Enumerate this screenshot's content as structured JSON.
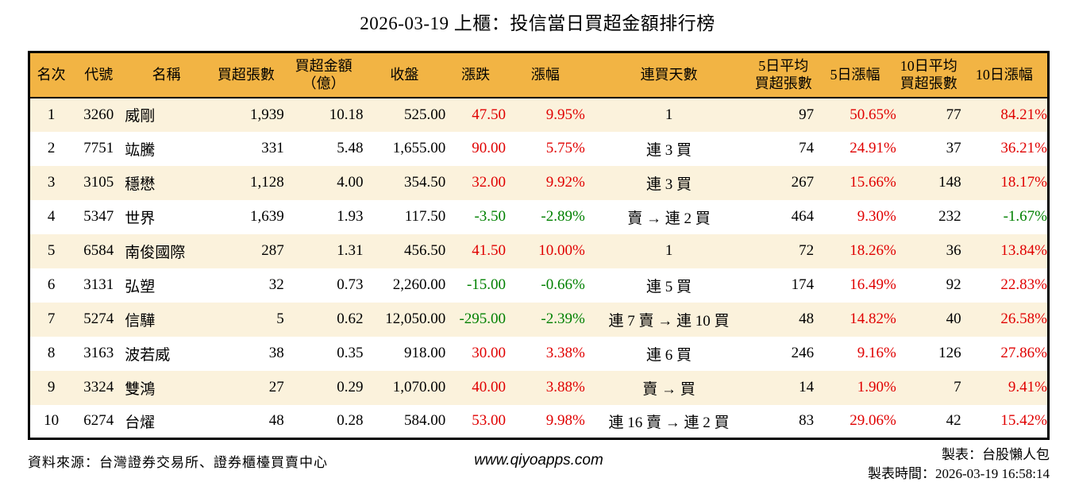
{
  "title": "2026-03-19 上櫃：投信當日買超金額排行榜",
  "colors": {
    "header_bg": "#f2b444",
    "row_alt_bg": "#fbf2dc",
    "positive_red": "#e00000",
    "negative_green": "#008000"
  },
  "chart_data": {
    "type": "table",
    "title": "2026-03-19 上櫃：投信當日買超金額排行榜",
    "headers": [
      "名次",
      "代號",
      "名稱",
      "買超張數",
      "買超金額\n（億）",
      "收盤",
      "漲跌",
      "漲幅",
      "連買天數",
      "5日平均\n買超張數",
      "5日漲幅",
      "10日平均\n買超張數",
      "10日漲幅"
    ],
    "rows": [
      [
        "1",
        "3260",
        "威剛",
        "1,939",
        "10.18",
        "525.00",
        "47.50",
        "9.95%",
        "1",
        "97",
        "50.65%",
        "77",
        "84.21%"
      ],
      [
        "2",
        "7751",
        "竑騰",
        "331",
        "5.48",
        "1,655.00",
        "90.00",
        "5.75%",
        "連 3 買",
        "74",
        "24.91%",
        "37",
        "36.21%"
      ],
      [
        "3",
        "3105",
        "穩懋",
        "1,128",
        "4.00",
        "354.50",
        "32.00",
        "9.92%",
        "連 3 買",
        "267",
        "15.66%",
        "148",
        "18.17%"
      ],
      [
        "4",
        "5347",
        "世界",
        "1,639",
        "1.93",
        "117.50",
        "-3.50",
        "-2.89%",
        "賣 → 連 2 買",
        "464",
        "9.30%",
        "232",
        "-1.67%"
      ],
      [
        "5",
        "6584",
        "南俊國際",
        "287",
        "1.31",
        "456.50",
        "41.50",
        "10.00%",
        "1",
        "72",
        "18.26%",
        "36",
        "13.84%"
      ],
      [
        "6",
        "3131",
        "弘塑",
        "32",
        "0.73",
        "2,260.00",
        "-15.00",
        "-0.66%",
        "連 5 買",
        "174",
        "16.49%",
        "92",
        "22.83%"
      ],
      [
        "7",
        "5274",
        "信驊",
        "5",
        "0.62",
        "12,050.00",
        "-295.00",
        "-2.39%",
        "連 7 賣 → 連 10 買",
        "48",
        "14.82%",
        "40",
        "26.58%"
      ],
      [
        "8",
        "3163",
        "波若威",
        "38",
        "0.35",
        "918.00",
        "30.00",
        "3.38%",
        "連 6 買",
        "246",
        "9.16%",
        "126",
        "27.86%"
      ],
      [
        "9",
        "3324",
        "雙鴻",
        "27",
        "0.29",
        "1,070.00",
        "40.00",
        "3.88%",
        "賣 → 買",
        "14",
        "1.90%",
        "7",
        "9.41%"
      ],
      [
        "10",
        "6274",
        "台燿",
        "48",
        "0.28",
        "584.00",
        "53.00",
        "9.98%",
        "連 16 賣 → 連 2 買",
        "83",
        "29.06%",
        "42",
        "15.42%"
      ]
    ]
  },
  "footer": {
    "source": "資料來源：台灣證券交易所、證券櫃檯買賣中心",
    "website": "www.qiyoapps.com",
    "maker": "製表：台股懶人包",
    "made_at": "製表時間：2026-03-19 16:58:14"
  }
}
